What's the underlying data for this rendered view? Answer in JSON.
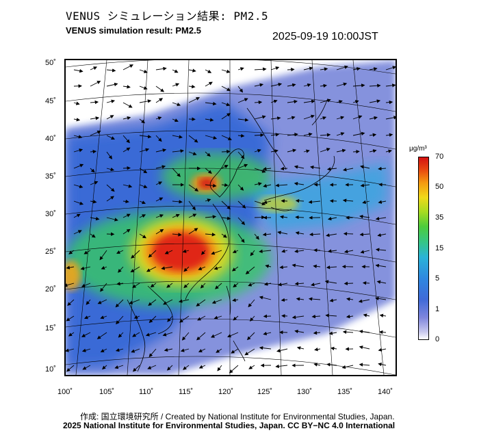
{
  "header": {
    "title_jp": "VENUS シミュレーション結果: PM2.5",
    "title_en": "VENUS simulation result: PM2.5",
    "timestamp": "2025-09-19 10:00JST"
  },
  "map": {
    "lat_labels": [
      "50˚",
      "45˚",
      "40˚",
      "35˚",
      "30˚",
      "25˚",
      "20˚",
      "15˚",
      "10˚"
    ],
    "lon_labels": [
      "100˚",
      "105˚",
      "110˚",
      "115˚",
      "120˚",
      "125˚",
      "130˚",
      "135˚",
      "140˚"
    ],
    "lat_range": [
      9,
      51
    ],
    "lon_range": [
      100,
      142
    ],
    "variable": "PM2.5"
  },
  "colorbar": {
    "unit": "μg/m³",
    "levels": [
      "70",
      "50",
      "35",
      "15",
      "5",
      "1",
      "0"
    ],
    "colors": [
      "#d41111",
      "#f59a10",
      "#f0d919",
      "#4dcc3c",
      "#29b3d8",
      "#3f6ad8",
      "#ffffff"
    ]
  },
  "credits": {
    "line1": "作成: 国立環境研究所 / Created by National Institute for Environmental Studies, Japan.",
    "line2": "2025 National Institute for Environmental Studies, Japan. CC BY−NC 4.0 International"
  }
}
